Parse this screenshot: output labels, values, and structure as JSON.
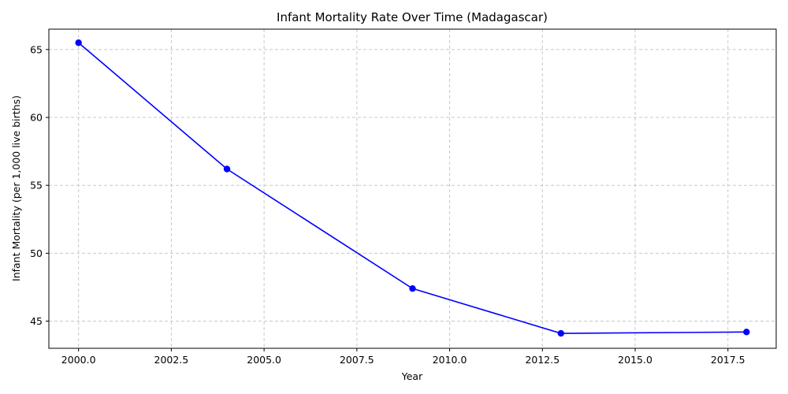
{
  "chart_data": {
    "type": "line",
    "title": "Infant Mortality Rate Over Time (Madagascar)",
    "xlabel": "Year",
    "ylabel": "Infant Mortality (per 1,000 live births)",
    "xlim": [
      1999.2,
      2018.8
    ],
    "ylim": [
      43.0,
      66.5
    ],
    "xticks": [
      2000.0,
      2002.5,
      2005.0,
      2007.5,
      2010.0,
      2012.5,
      2015.0,
      2017.5
    ],
    "xtick_labels": [
      "2000.0",
      "2002.5",
      "2005.0",
      "2007.5",
      "2010.0",
      "2012.5",
      "2015.0",
      "2017.5"
    ],
    "yticks": [
      45,
      50,
      55,
      60,
      65
    ],
    "ytick_labels": [
      "45",
      "50",
      "55",
      "60",
      "65"
    ],
    "grid": true,
    "series": [
      {
        "color": "#0000ff",
        "marker": "circle",
        "x": [
          2000,
          2004,
          2009,
          2013,
          2018
        ],
        "y": [
          65.5,
          56.2,
          47.4,
          44.1,
          44.2
        ]
      }
    ]
  }
}
